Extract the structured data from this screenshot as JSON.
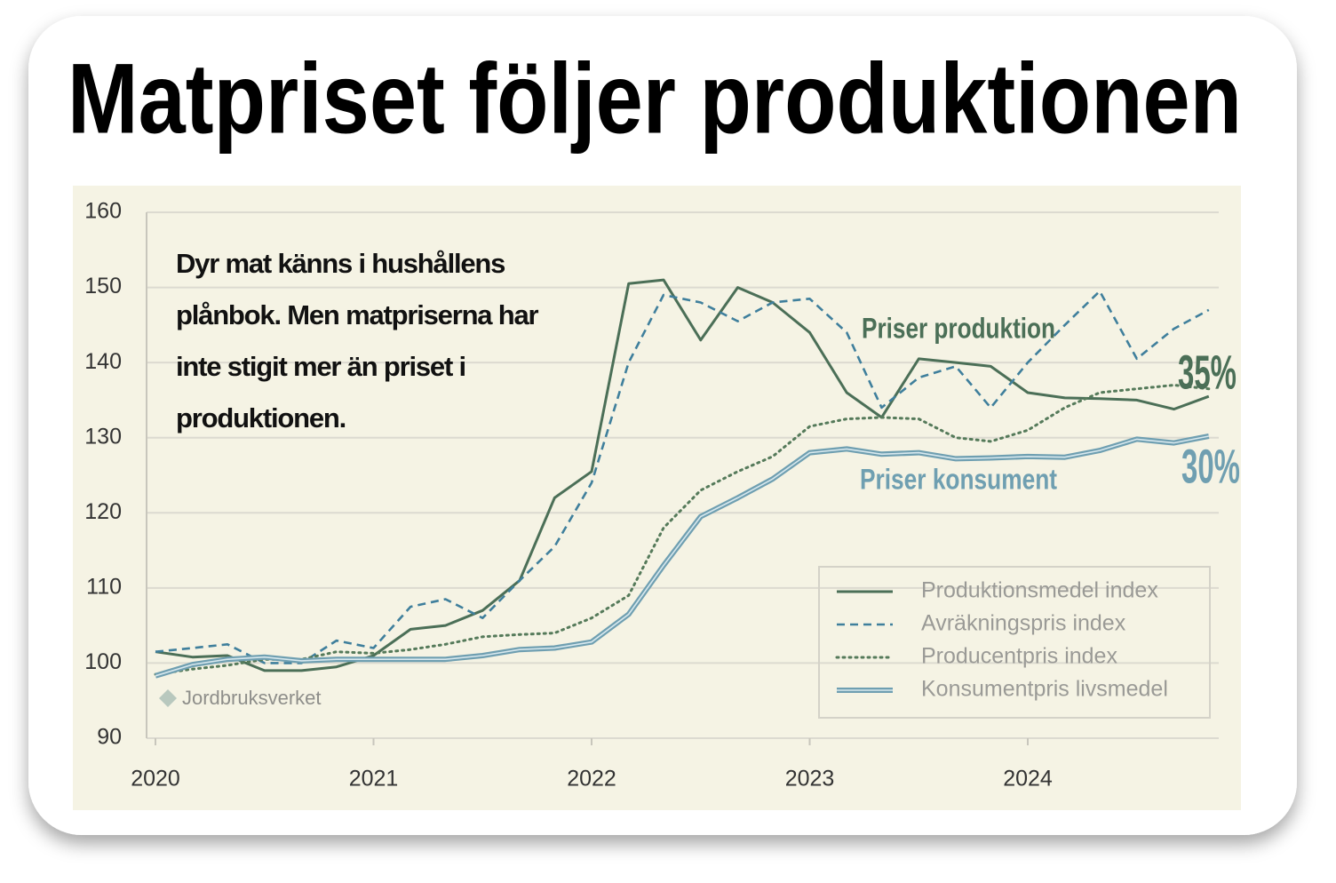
{
  "chart_data": {
    "type": "line",
    "title": "Matpriset följer produktionen",
    "annotation": "Dyr mat känns i hushållens plånbok. Men matpriserna har inte stigit mer än priset i produktionen.",
    "label_production": "Priser produktion",
    "label_consumer": "Priser konsument",
    "label_production_change": "35%",
    "label_consumer_change": "30%",
    "source": "Jordbruksverket",
    "x": [
      2020,
      2020.17,
      2020.33,
      2020.5,
      2020.67,
      2020.83,
      2021,
      2021.17,
      2021.33,
      2021.5,
      2021.67,
      2021.83,
      2022,
      2022.17,
      2022.33,
      2022.5,
      2022.67,
      2022.83,
      2023,
      2023.17,
      2023.33,
      2023.5,
      2023.67,
      2023.83,
      2024,
      2024.17,
      2024.33,
      2024.5,
      2024.67,
      2024.83
    ],
    "series": [
      {
        "name": "Produktionsmedel index",
        "color": "#4b6f57",
        "style": "solid",
        "values": [
          101.5,
          100.8,
          101,
          99,
          99,
          99.5,
          101,
          104.5,
          105,
          107,
          111,
          122,
          125.5,
          150.5,
          151,
          143,
          150,
          148,
          144,
          136,
          132.7,
          140.5,
          140,
          139.5,
          136,
          135.3,
          135.2,
          135,
          133.8,
          135.5
        ]
      },
      {
        "name": "Avräkningspris index",
        "color": "#3f7f9c",
        "style": "dashed",
        "values": [
          101.5,
          102,
          102.5,
          100,
          100,
          103,
          102,
          107.5,
          108.5,
          106,
          111,
          115.5,
          124,
          140,
          149,
          148,
          145.5,
          148,
          148.5,
          144,
          134,
          138,
          139.5,
          134,
          140,
          145,
          149.5,
          140.5,
          144.5,
          147
        ]
      },
      {
        "name": "Producentpris index",
        "color": "#557a5a",
        "style": "dotted",
        "values": [
          98.5,
          99.2,
          99.7,
          100.5,
          100.5,
          101.5,
          101.3,
          101.8,
          102.5,
          103.5,
          103.8,
          104,
          106,
          109,
          118,
          123,
          125.5,
          127.5,
          131.5,
          132.5,
          132.7,
          132.5,
          130,
          129.5,
          131,
          134,
          136,
          136.5,
          137,
          136.5
        ]
      },
      {
        "name": "Konsumentpris livsmedel",
        "color": "#6f9fb1",
        "style": "double",
        "values": [
          98.3,
          99.8,
          100.5,
          100.8,
          100.3,
          100.5,
          100.5,
          100.5,
          100.5,
          101,
          101.8,
          102,
          102.8,
          106.5,
          113,
          119.5,
          122,
          124.5,
          128,
          128.5,
          127.8,
          128,
          127.2,
          127.3,
          127.5,
          127.4,
          128.3,
          129.8,
          129.3,
          130.2
        ]
      }
    ],
    "xlim": [
      2020,
      2025
    ],
    "xticks": [
      2020,
      2021,
      2022,
      2023,
      2024
    ],
    "ylim": [
      90,
      160
    ],
    "yticks": [
      90,
      100,
      110,
      120,
      130,
      140,
      150,
      160
    ],
    "grid": true,
    "legend": "lower right"
  }
}
